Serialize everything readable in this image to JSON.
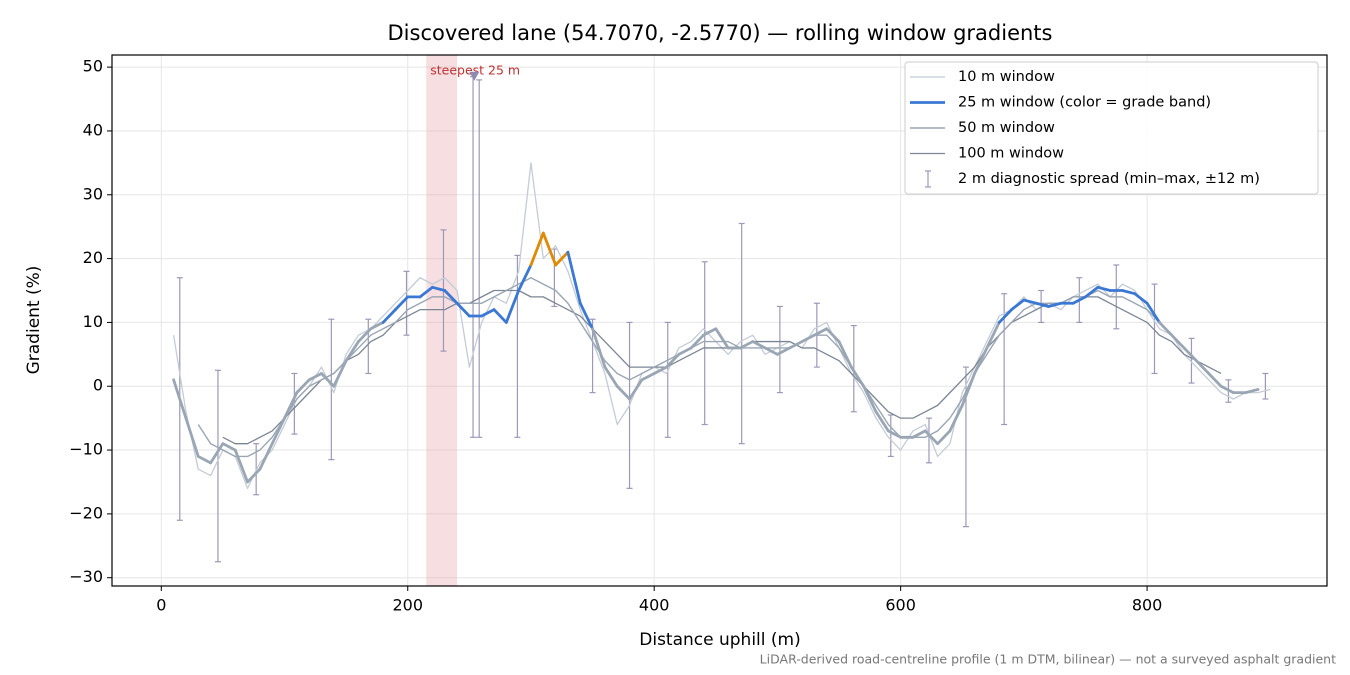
{
  "chart_data": {
    "type": "line",
    "title": "Discovered lane (54.7070, -2.5770) — rolling window gradients",
    "xlabel": "Distance uphill (m)",
    "ylabel": "Gradient (%)",
    "footnote": "LiDAR-derived road-centreline profile (1 m DTM, bilinear) — not a surveyed asphalt gradient",
    "xlim": [
      -40,
      946
    ],
    "ylim": [
      -31.3,
      51.9
    ],
    "xticks": [
      0,
      200,
      400,
      600,
      800
    ],
    "yticks": [
      {
        "value": -30,
        "label": "−30"
      },
      {
        "value": -20,
        "label": "−20"
      },
      {
        "value": -10,
        "label": "−10"
      },
      0,
      10,
      20,
      30,
      40,
      50
    ],
    "grid": true,
    "legend": "upper right",
    "x": [
      10,
      20,
      30,
      40,
      50,
      60,
      70,
      80,
      90,
      100,
      110,
      120,
      130,
      140,
      150,
      160,
      170,
      180,
      190,
      200,
      210,
      220,
      230,
      240,
      250,
      260,
      270,
      280,
      290,
      300,
      310,
      320,
      330,
      340,
      350,
      360,
      370,
      380,
      390,
      400,
      410,
      420,
      430,
      440,
      450,
      460,
      470,
      480,
      490,
      500,
      510,
      520,
      530,
      540,
      550,
      560,
      570,
      580,
      590,
      600,
      610,
      620,
      630,
      640,
      650,
      660,
      670,
      680,
      690,
      700,
      710,
      720,
      730,
      740,
      750,
      760,
      770,
      780,
      790,
      800,
      810,
      820,
      830,
      840,
      850,
      860,
      870,
      880,
      890,
      900
    ],
    "series": [
      {
        "name": "10 m window",
        "color": "#c4ccd6",
        "width": 1.3,
        "values": [
          8,
          -4,
          -13,
          -14,
          -10,
          -11,
          -16,
          -12,
          -10,
          -6,
          -2,
          0,
          3,
          -1,
          5,
          8,
          9,
          11,
          13,
          15,
          17,
          16,
          17,
          15,
          3,
          10,
          14,
          13,
          18,
          35,
          20,
          22,
          18,
          12,
          7,
          2,
          -6,
          -3,
          2,
          3,
          2,
          6,
          7,
          9,
          7,
          5,
          7,
          8,
          5,
          6,
          7,
          6,
          9,
          10,
          6,
          2,
          -1,
          -5,
          -8,
          -10,
          -7,
          -6,
          -11,
          -9,
          -1,
          3,
          7,
          11,
          12,
          14,
          12,
          13,
          12,
          14,
          15,
          16,
          14,
          16,
          15,
          12,
          9,
          8,
          5,
          3,
          1,
          -1,
          -2,
          -1,
          -1,
          -0.5
        ]
      },
      {
        "name": "25 m window (color = grade band)",
        "color": "#3a78d4",
        "width": 2.8,
        "grade_bands": [
          {
            "max": 10,
            "color": "#9aa6b4"
          },
          {
            "max": 20,
            "color": "#3a78d4"
          },
          {
            "color": "#e08a00"
          }
        ],
        "values": [
          1,
          -5,
          -11,
          -12,
          -9,
          -10,
          -15,
          -13,
          -9,
          -5,
          -1,
          1,
          2,
          0,
          4,
          7,
          9,
          10,
          12,
          14,
          14,
          15.5,
          15,
          13,
          11,
          11,
          12,
          10,
          15,
          19,
          24,
          19,
          21,
          13,
          9,
          3,
          0,
          -2,
          1,
          2,
          3,
          5,
          6,
          8,
          9,
          6,
          6,
          7,
          6,
          5,
          6,
          7,
          8,
          9,
          7,
          3,
          0,
          -4,
          -7,
          -8,
          -8,
          -7,
          -9,
          -7,
          -3,
          2,
          6,
          10,
          12,
          13.5,
          13,
          12.5,
          13,
          13,
          14,
          15.5,
          15,
          15,
          14.5,
          13,
          10,
          8,
          6,
          4,
          2,
          0,
          -1,
          -1,
          -0.5,
          null
        ]
      },
      {
        "name": "50 m window",
        "color": "#9aa6b4",
        "width": 1.4,
        "values": [
          null,
          null,
          -6,
          -9,
          -10,
          -11,
          -11,
          -10,
          -8,
          -5,
          -2,
          0,
          1,
          2,
          4,
          6,
          8,
          9,
          10,
          12,
          13,
          14,
          14,
          13,
          13,
          13,
          14,
          15,
          16,
          17,
          16,
          15,
          13,
          10,
          7,
          4,
          2,
          1,
          2,
          3,
          4,
          5,
          6,
          7,
          7,
          7,
          6,
          6,
          6,
          6,
          6,
          7,
          8,
          8,
          6,
          3,
          0,
          -3,
          -6,
          -8,
          -8,
          -8,
          -7,
          -5,
          -2,
          2,
          5,
          8,
          10,
          12,
          13,
          13,
          13,
          14,
          14,
          15,
          14,
          14,
          13,
          12,
          10,
          8,
          6,
          4,
          2,
          0,
          -1,
          -1,
          null,
          null
        ]
      },
      {
        "name": "100 m window",
        "color": "#7c8594",
        "width": 1.3,
        "values": [
          null,
          null,
          null,
          null,
          -8,
          -9,
          -9,
          -8,
          -7,
          -5,
          -3,
          -1,
          1,
          2,
          4,
          5,
          7,
          8,
          10,
          11,
          12,
          12,
          12,
          13,
          13,
          14,
          15,
          15,
          15,
          14,
          14,
          13,
          12,
          11,
          9,
          7,
          5,
          3,
          3,
          3,
          3,
          4,
          5,
          6,
          6,
          6,
          6,
          7,
          7,
          7,
          7,
          6,
          6,
          5,
          4,
          2,
          0,
          -2,
          -4,
          -5,
          -5,
          -4,
          -3,
          -1,
          1,
          3,
          6,
          8,
          10,
          11,
          12,
          13,
          13,
          14,
          14,
          14,
          13,
          12,
          11,
          10,
          8,
          7,
          5,
          4,
          3,
          2,
          null,
          null,
          null,
          null
        ]
      }
    ],
    "spread": {
      "name": "2 m diagnostic spread (min–max, ±12 m)",
      "color": "#9e98b8",
      "x": [
        15,
        46,
        77,
        108,
        138,
        168,
        199,
        229,
        253,
        258,
        289,
        319,
        350,
        380,
        411,
        441,
        471,
        502,
        532,
        562,
        592,
        623,
        653,
        684,
        714,
        745,
        775,
        806,
        836,
        866,
        896
      ],
      "min": [
        -21,
        -27.5,
        -17,
        -7.5,
        -11.5,
        2,
        8,
        5.5,
        -8,
        -8,
        -8,
        12.5,
        -1,
        -16,
        -8,
        -6,
        -9,
        -1,
        3,
        -4,
        -11,
        -12,
        -22,
        -6,
        10,
        10,
        9,
        2,
        0.5,
        -2.5,
        -2
      ],
      "max": [
        17,
        2.5,
        -9,
        2,
        10.5,
        10.5,
        18,
        24.5,
        48.5,
        48,
        20.5,
        21.5,
        10.5,
        10,
        10,
        19.5,
        25.5,
        12.5,
        13,
        9.5,
        -4.5,
        -5,
        3,
        14.5,
        15,
        17,
        19,
        16,
        7.5,
        1,
        2
      ]
    },
    "steepest": {
      "xlim": [
        215,
        240
      ],
      "label": "steepest 25 m",
      "color": "#e8a0a8",
      "label_color": "#c03030",
      "marker": {
        "x": 254,
        "y": 48.5,
        "color": "#9088b0"
      }
    }
  }
}
